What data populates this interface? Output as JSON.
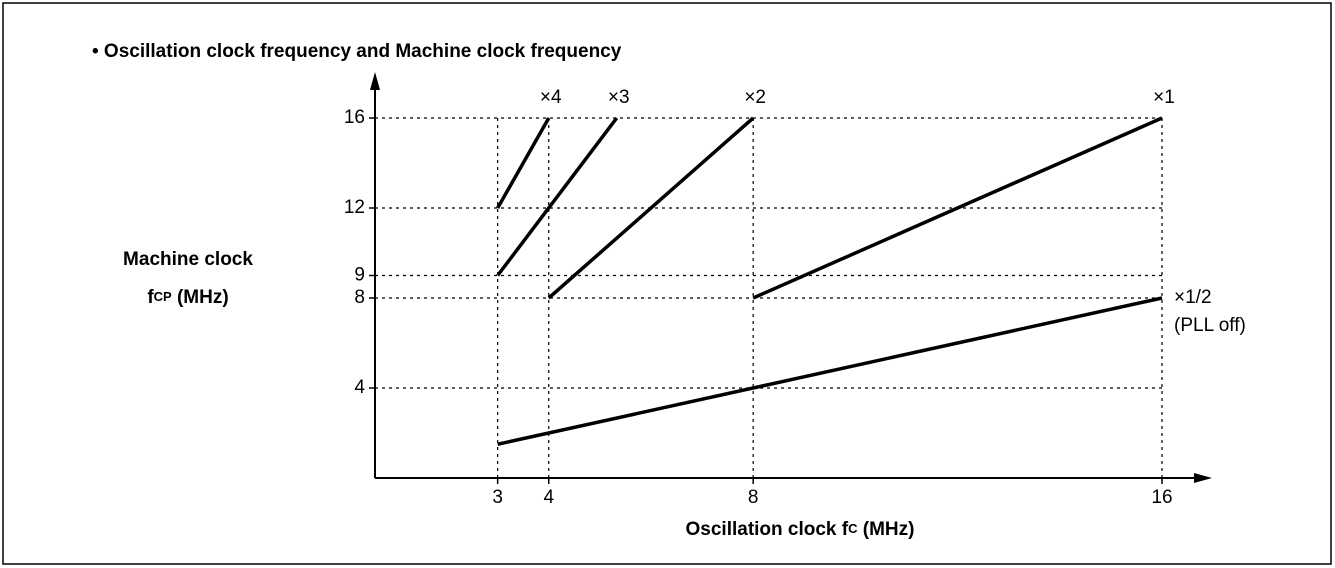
{
  "chart_data": {
    "type": "line",
    "title": "• Oscillation clock frequency and Machine clock frequency",
    "y_label": [
      "Machine clock",
      "f",
      "CP",
      " (MHz)"
    ],
    "x_label": [
      "Oscillation clock f",
      "C",
      " (MHz)"
    ],
    "xlim": [
      0.6,
      17.8
    ],
    "ylim": [
      0,
      18
    ],
    "xticks": [
      3,
      4,
      8,
      16
    ],
    "yticks": [
      4,
      8,
      9,
      12,
      16
    ],
    "grid": true,
    "series": [
      {
        "name": "×4",
        "color": "#000000",
        "x": [
          3,
          4
        ],
        "values": [
          12,
          16
        ]
      },
      {
        "name": "×3",
        "color": "#000000",
        "x": [
          3,
          5.33
        ],
        "values": [
          9,
          16
        ]
      },
      {
        "name": "×2",
        "color": "#000000",
        "x": [
          4,
          8
        ],
        "values": [
          8,
          16
        ]
      },
      {
        "name": "×1",
        "color": "#000000",
        "x": [
          8,
          16
        ],
        "values": [
          8,
          16
        ]
      },
      {
        "name": "×1/2",
        "color": "#000000",
        "x": [
          3,
          16
        ],
        "values": [
          1.5,
          8
        ]
      }
    ],
    "annotations": [
      "(PLL off)"
    ]
  }
}
